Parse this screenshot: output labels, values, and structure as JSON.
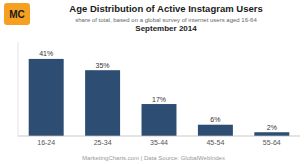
{
  "chart_data": {
    "type": "bar",
    "title": "Age Distribution of Active Instagram Users",
    "subtitle": "share of total, based on a global survey of internet users aged 16-64",
    "annotations": [
      "September 2014",
      "MarketingCharts.com | Data Source: GlobalWebIndex",
      "MC"
    ],
    "categories": [
      "16-24",
      "25-34",
      "35-44",
      "45-54",
      "55-64"
    ],
    "values": [
      41,
      35,
      17,
      6,
      2
    ],
    "value_labels": [
      "41%",
      "35%",
      "17%",
      "6%",
      "2%"
    ],
    "data_labels": true,
    "color": "#2e4d72",
    "ylim": [
      0,
      50
    ],
    "yticks": [],
    "grid": false,
    "tick_labels": "x"
  }
}
